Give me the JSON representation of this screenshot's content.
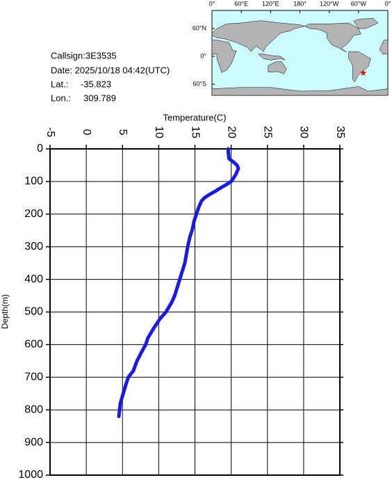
{
  "header": {
    "callsign": "Callsign:3E3535",
    "date": "Date:  2025/10/18 04:42(UTC)",
    "lat_label": "Lat.:",
    "lat": -35.823,
    "lon_label": "Lon.:",
    "lon": 309.789
  },
  "map": {
    "lonticks": [
      {
        "value": 0,
        "label": "0°"
      },
      {
        "value": 60,
        "label": "60°E"
      },
      {
        "value": 120,
        "label": "120°E"
      },
      {
        "value": 180,
        "label": "180°"
      },
      {
        "value": 240,
        "label": "120°W"
      },
      {
        "value": 300,
        "label": "60°W"
      },
      {
        "value": 360,
        "label": "0°"
      }
    ],
    "latticks": [
      {
        "value": 60,
        "label": "60°N"
      },
      {
        "value": 0,
        "label": "0°"
      },
      {
        "value": -60,
        "label": "60°S"
      }
    ]
  },
  "chart_data": {
    "type": "line",
    "xlabel": "Temperature(C)",
    "ylabel": "Depth(m)",
    "y": [
      0,
      10,
      30,
      40,
      50,
      60,
      70,
      80,
      90,
      100,
      110,
      120,
      130,
      140,
      150,
      160,
      170,
      180,
      200,
      220,
      250,
      270,
      300,
      350,
      400,
      450,
      470,
      500,
      520,
      550,
      580,
      600,
      620,
      650,
      680,
      700,
      720,
      750,
      780,
      800,
      820
    ],
    "series": [
      {
        "color": "#1a1ae6",
        "values": [
          19.6,
          19.6,
          19.7,
          20.3,
          20.8,
          21.0,
          20.8,
          20.6,
          20.3,
          20.0,
          19.3,
          18.5,
          17.8,
          17.0,
          16.3,
          15.9,
          15.7,
          15.5,
          15.2,
          14.9,
          14.6,
          14.3,
          14.0,
          13.6,
          12.9,
          12.2,
          11.8,
          11.0,
          10.2,
          9.3,
          8.5,
          8.2,
          7.7,
          7.0,
          6.5,
          5.8,
          5.5,
          5.1,
          4.7,
          4.6,
          4.5
        ]
      }
    ],
    "xlim": [
      -5,
      35
    ],
    "xticks": [
      -5,
      0,
      5,
      10,
      15,
      20,
      25,
      30,
      35
    ],
    "ylim": [
      0,
      1000
    ],
    "y_reversed": true,
    "yticks": [
      0,
      100,
      200,
      300,
      400,
      500,
      600,
      700,
      800,
      900,
      1000
    ],
    "grid": true
  }
}
